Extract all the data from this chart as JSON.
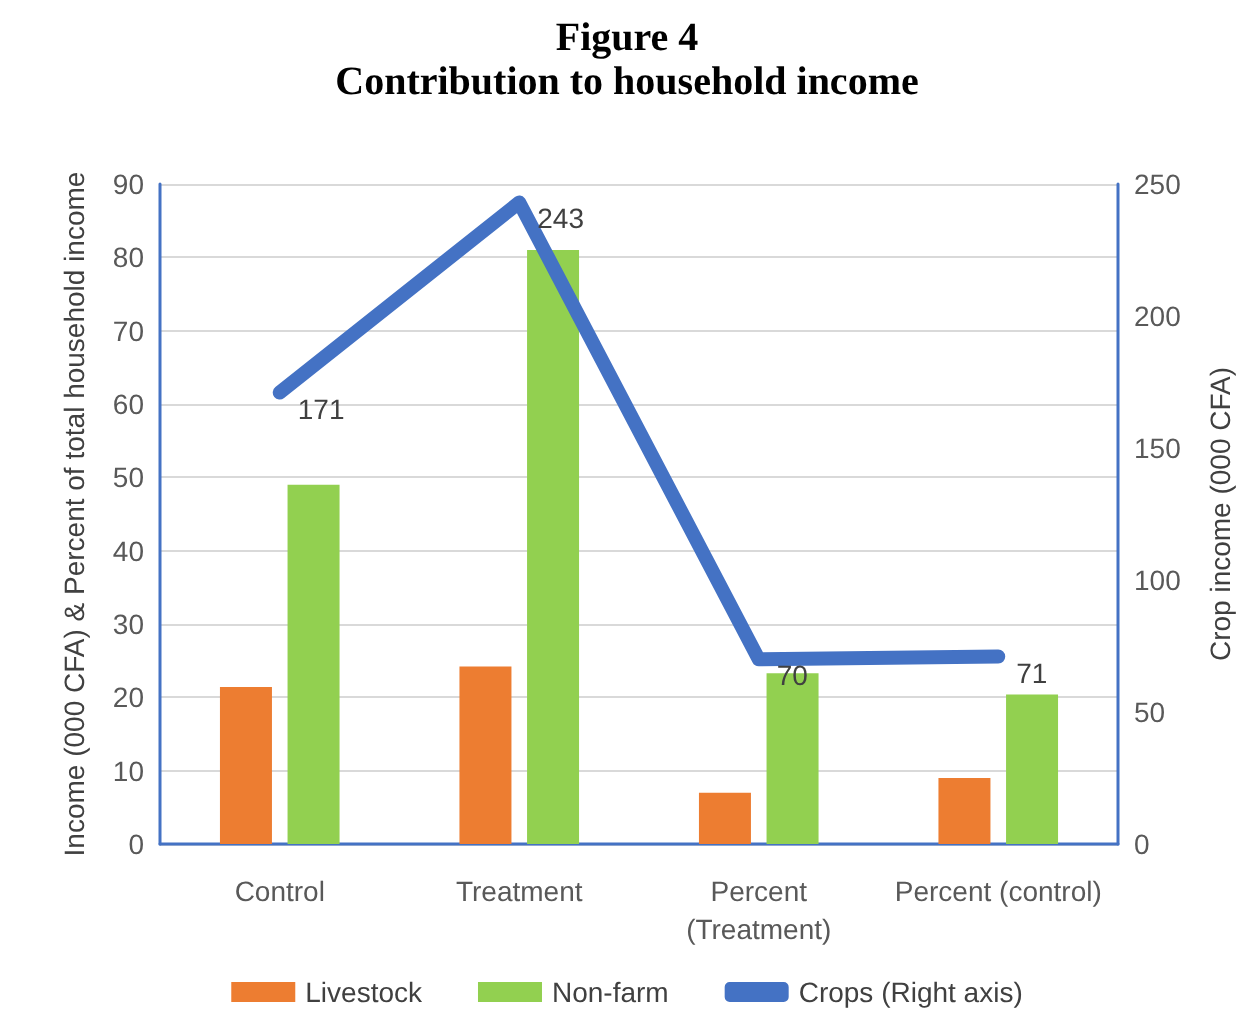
{
  "chart_data": {
    "type": "bar",
    "title": "Figure 4",
    "subtitle": "Contribution to household income",
    "categories": [
      "Control",
      "Treatment",
      "Percent\n(Treatment)",
      "Percent (control)"
    ],
    "ylabel": "Income (000 CFA) & Percent of total household income",
    "y2label": "Crop income (000 CFA)",
    "series": [
      {
        "name": "Livestock",
        "color": "#ed7d31",
        "values": [
          21.4,
          24.2,
          7,
          9
        ]
      },
      {
        "name": "Non-farm",
        "color": "#92d050",
        "values": [
          49,
          81,
          23.3,
          20.4
        ]
      },
      {
        "name": "Crops (Right axis)",
        "type": "line",
        "axis": "y2",
        "color": "#4472c4",
        "values": [
          171,
          243,
          70,
          71
        ],
        "data_labels": true,
        "marker": "none"
      }
    ],
    "ylim": [
      0,
      90
    ],
    "yticks": [
      0,
      10,
      20,
      30,
      40,
      50,
      60,
      70,
      80,
      90
    ],
    "y2lim": [
      0,
      250
    ],
    "y2ticks": [
      0,
      50,
      100,
      150,
      200,
      250
    ],
    "grid": "y",
    "legend": "bottom"
  }
}
